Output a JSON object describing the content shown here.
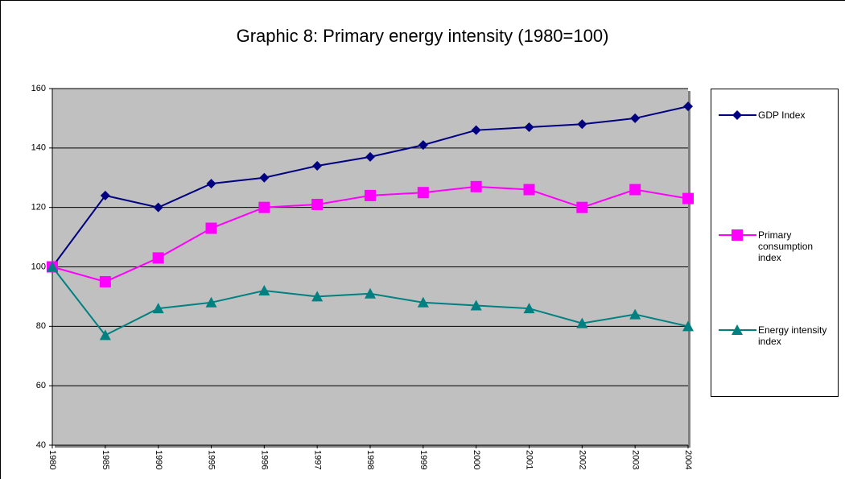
{
  "chart_data": {
    "type": "line",
    "title": "Graphic 8: Primary energy intensity (1980=100)",
    "categories": [
      "1980",
      "1985",
      "1990",
      "1995",
      "1996",
      "1997",
      "1998",
      "1999",
      "2000",
      "2001",
      "2002",
      "2003",
      "2004"
    ],
    "series": [
      {
        "name": "GDP Index",
        "color": "#000080",
        "marker": "diamond",
        "values": [
          100,
          124,
          120,
          128,
          130,
          134,
          137,
          141,
          146,
          147,
          148,
          150,
          154
        ]
      },
      {
        "name": "Primary consumption index",
        "color": "#ff00ff",
        "marker": "square",
        "values": [
          100,
          95,
          103,
          113,
          120,
          121,
          124,
          125,
          127,
          126,
          120,
          126,
          123
        ]
      },
      {
        "name": "Energy intensity index",
        "color": "#008080",
        "marker": "triangle",
        "values": [
          100,
          77,
          86,
          88,
          92,
          90,
          91,
          88,
          87,
          86,
          81,
          84,
          80
        ]
      }
    ],
    "ylim": [
      40,
      160
    ],
    "yticks": [
      40,
      60,
      80,
      100,
      120,
      140,
      160
    ],
    "grid": true,
    "legend": "right"
  }
}
